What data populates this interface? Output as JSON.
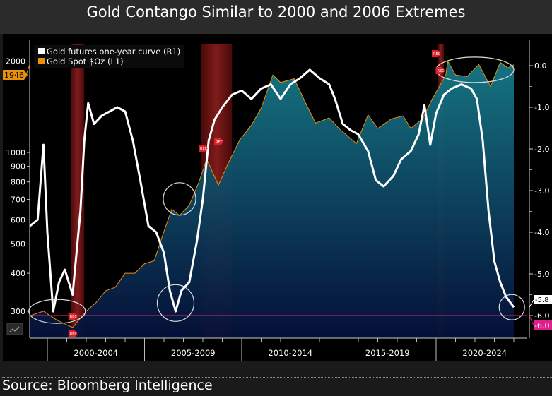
{
  "title": "Gold Contango Similar to 2000 and 2006 Extremes",
  "source": "Source: Bloomberg Intelligence",
  "colors": {
    "curve": "#ffffff",
    "spot": "#e8900a",
    "fill_top": "#167a88",
    "fill_bottom": "#05103a",
    "recession": "#7a1616",
    "reference_line": "#e0208a",
    "rec_marker": "#e0202a"
  },
  "chart_data": {
    "type": "line",
    "title": "Gold Contango Similar to 2000 and 2006 Extremes",
    "x_tick_labels": [
      "2000-2004",
      "2005-2009",
      "2010-2014",
      "2015-2019",
      "2020-2024"
    ],
    "xlim": [
      1999.1,
      2024.4
    ],
    "left_axis": {
      "scale": "log",
      "ticks": [
        "300",
        "400",
        "500",
        "600",
        "700",
        "800",
        "900",
        "1000",
        "2000"
      ],
      "ylim": [
        250,
        2150
      ]
    },
    "right_axis": {
      "scale": "linear",
      "ticks": [
        "0.0",
        "-1.0",
        "-2.0",
        "-3.0",
        "-4.0",
        "-5.0",
        "-6.0"
      ],
      "ylim": [
        -6.5,
        0.5
      ]
    },
    "legend": {
      "placement": "top-left",
      "entries": [
        "Gold futures one-year curve (R1)",
        "Gold Spot $Oz  (L1)"
      ]
    },
    "last_value_tags": {
      "spot": "1946",
      "curve": "-5.8",
      "reference": "-6.0"
    },
    "reference_line": -6.0,
    "recessions": [
      [
        2001.2,
        2001.9
      ],
      [
        2007.9,
        2009.5
      ],
      [
        2020.1,
        2020.4
      ]
    ],
    "rec_label": "REC",
    "series": [
      {
        "name": "Gold futures one-year curve (R1)",
        "axis": "right",
        "style": "line",
        "x": [
          1999.1,
          1999.5,
          1999.8,
          2000.0,
          2000.3,
          2000.6,
          2000.9,
          2001.3,
          2001.7,
          2001.9,
          2002.1,
          2002.4,
          2002.8,
          2003.2,
          2003.6,
          2004.0,
          2004.4,
          2004.8,
          2005.2,
          2005.6,
          2006.0,
          2006.3,
          2006.6,
          2006.9,
          2007.3,
          2007.7,
          2008.0,
          2008.3,
          2008.6,
          2009.0,
          2009.5,
          2010.0,
          2010.5,
          2011.0,
          2011.5,
          2012.0,
          2012.5,
          2013.0,
          2013.5,
          2014.0,
          2014.5,
          2014.8,
          2015.2,
          2015.6,
          2016.0,
          2016.5,
          2016.9,
          2017.3,
          2017.8,
          2018.2,
          2018.7,
          2019.1,
          2019.4,
          2019.7,
          2020.0,
          2020.4,
          2020.8,
          2021.3,
          2021.8,
          2022.1,
          2022.4,
          2022.7,
          2023.0,
          2023.3,
          2023.6,
          2024.0
        ],
        "y": [
          -3.85,
          -3.7,
          -1.9,
          -4.0,
          -5.9,
          -5.2,
          -4.9,
          -5.5,
          -3.5,
          -1.8,
          -0.9,
          -1.4,
          -1.2,
          -1.1,
          -1.0,
          -1.1,
          -1.8,
          -2.8,
          -3.85,
          -4.0,
          -4.5,
          -5.4,
          -5.9,
          -5.4,
          -5.2,
          -4.2,
          -3.2,
          -1.8,
          -1.3,
          -1.0,
          -0.7,
          -0.6,
          -0.8,
          -0.55,
          -0.45,
          -0.8,
          -0.45,
          -0.3,
          -0.1,
          -0.3,
          -0.45,
          -0.8,
          -1.4,
          -1.55,
          -1.65,
          -2.05,
          -2.75,
          -2.9,
          -2.65,
          -2.25,
          -2.05,
          -1.65,
          -0.95,
          -1.9,
          -1.15,
          -0.7,
          -0.55,
          -0.45,
          -0.55,
          -0.8,
          -1.8,
          -3.5,
          -4.7,
          -5.2,
          -5.55,
          -5.8
        ]
      },
      {
        "name": "Gold Spot $Oz  (L1)",
        "axis": "left",
        "style": "area",
        "x": [
          1999.1,
          1999.8,
          2000.5,
          2001.3,
          2002.0,
          2002.5,
          2003.0,
          2003.5,
          2004.0,
          2004.5,
          2005.0,
          2005.5,
          2006.0,
          2006.4,
          2006.8,
          2007.3,
          2007.8,
          2008.2,
          2008.8,
          2009.3,
          2009.9,
          2010.5,
          2011.0,
          2011.6,
          2012.0,
          2012.7,
          2013.3,
          2013.8,
          2014.5,
          2015.0,
          2015.9,
          2016.5,
          2017.0,
          2017.7,
          2018.3,
          2018.7,
          2019.3,
          2019.8,
          2020.5,
          2020.6,
          2021.0,
          2021.6,
          2022.2,
          2022.8,
          2023.3,
          2023.7,
          2024.0
        ],
        "y": [
          290,
          300,
          280,
          265,
          300,
          320,
          350,
          360,
          400,
          400,
          430,
          440,
          550,
          650,
          620,
          670,
          800,
          950,
          780,
          920,
          1100,
          1230,
          1400,
          1800,
          1700,
          1750,
          1450,
          1250,
          1300,
          1200,
          1070,
          1330,
          1200,
          1290,
          1320,
          1200,
          1290,
          1500,
          1800,
          2000,
          1800,
          1780,
          1950,
          1650,
          1980,
          1900,
          1946
        ]
      }
    ]
  }
}
